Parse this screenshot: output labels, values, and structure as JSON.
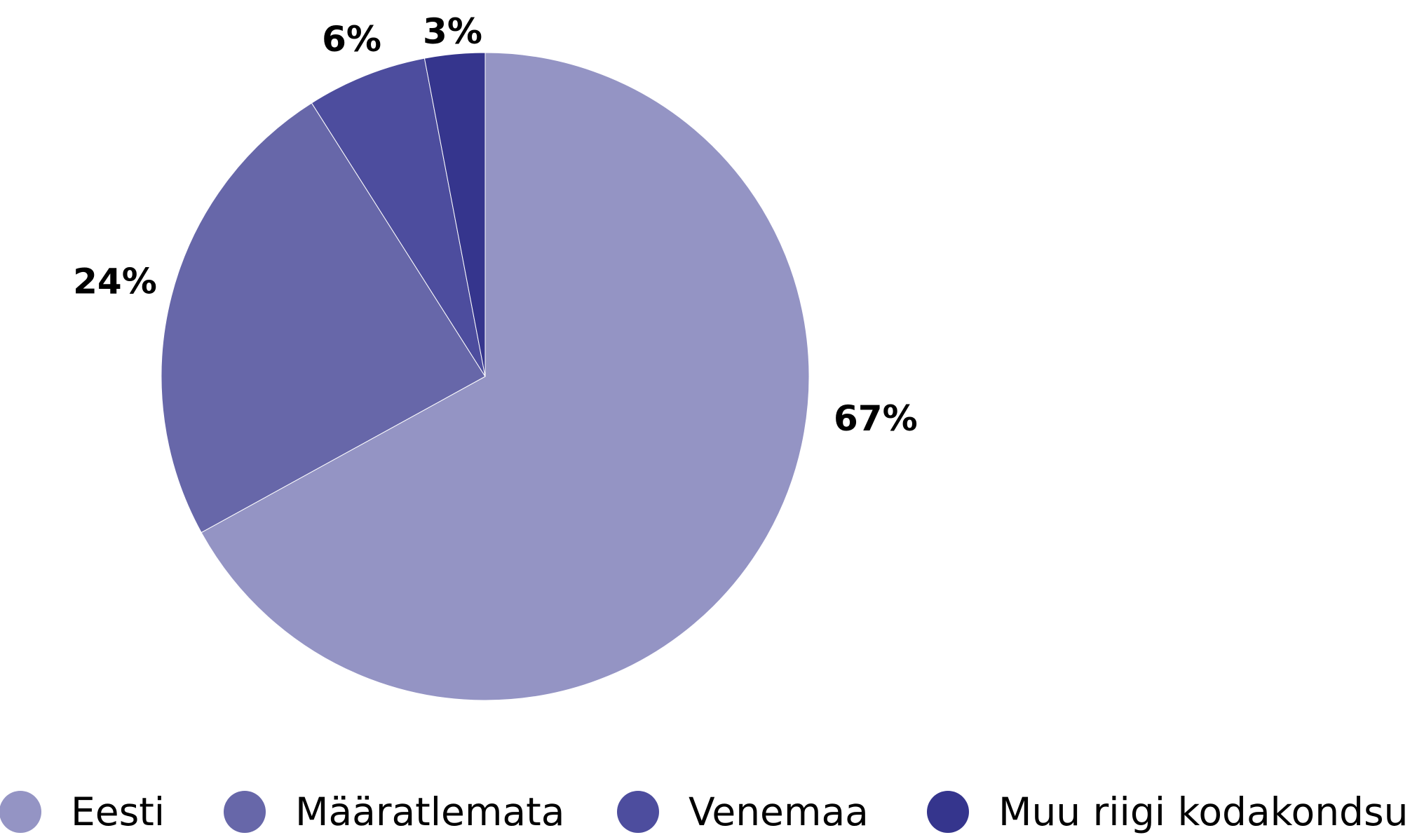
{
  "chart_data": {
    "type": "pie",
    "start_angle": "12 o'clock",
    "direction": "clockwise",
    "legend_position": "bottom",
    "slices": [
      {
        "name": "Eesti",
        "value": 67,
        "label": "67%",
        "color": "#9494c4"
      },
      {
        "name": "Määratlemata",
        "value": 24,
        "label": "24%",
        "color": "#6767a9"
      },
      {
        "name": "Venemaa",
        "value": 6,
        "label": "6%",
        "color": "#4d4d9e"
      },
      {
        "name": "Muu riigi kodakondsus",
        "value": 3,
        "label": "3%",
        "color": "#35358d"
      }
    ]
  }
}
